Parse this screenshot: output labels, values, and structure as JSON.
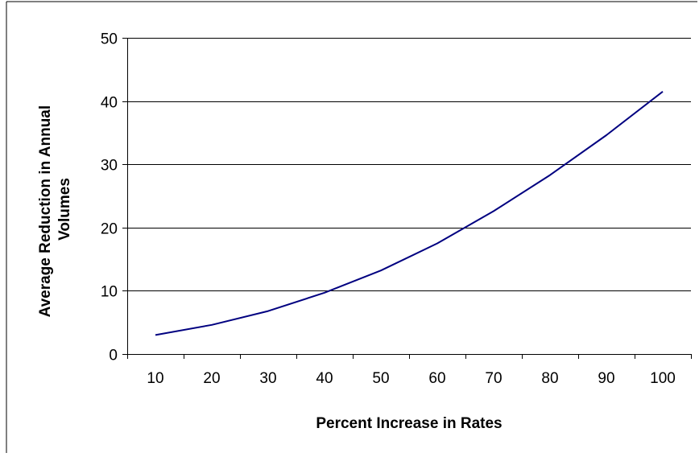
{
  "chart_data": {
    "type": "line",
    "title": "",
    "xlabel": "Percent Increase in Rates",
    "ylabel": "Average Reduction in Annual Volumes",
    "ylabel_lines": [
      "Average Reduction in Annual",
      "Volumes"
    ],
    "categories": [
      "10",
      "20",
      "30",
      "40",
      "50",
      "60",
      "70",
      "80",
      "90",
      "100"
    ],
    "series": [
      {
        "values": [
          3.0,
          4.6,
          6.8,
          9.7,
          13.2,
          17.5,
          22.6,
          28.3,
          34.6,
          41.5
        ],
        "color": "#000080"
      }
    ],
    "ylim": [
      0,
      50
    ],
    "yticks": [
      0,
      10,
      20,
      30,
      40,
      50
    ],
    "grid": true,
    "legend": "none"
  }
}
